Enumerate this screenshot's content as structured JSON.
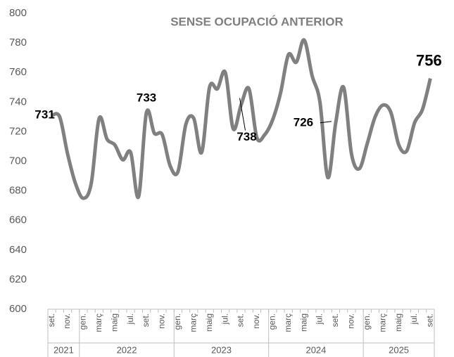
{
  "chart_data": {
    "type": "line",
    "title": "SENSE OCUPACIÓ ANTERIOR",
    "categories": [
      "set.",
      null,
      "nov.",
      null,
      "gen.",
      null,
      "març",
      null,
      "maig",
      null,
      "jul.",
      null,
      "set.",
      null,
      "nov.",
      null,
      "gen.",
      null,
      "març",
      null,
      "maig",
      null,
      "jul.",
      null,
      "set.",
      null,
      "nov.",
      null,
      "gen.",
      null,
      "març",
      null,
      "maig",
      null,
      "jul.",
      null,
      "set.",
      null,
      "nov.",
      null,
      "gen.",
      null,
      "març",
      null,
      "maig",
      null,
      "jul.",
      null,
      "set."
    ],
    "years": [
      "2021",
      "2022",
      "2023",
      "2024",
      "2025"
    ],
    "series": [
      {
        "name": "Sense ocupació anterior",
        "color": "#808080",
        "values": [
          731,
          730,
          705,
          685,
          675,
          685,
          729,
          715,
          711,
          701,
          706,
          676,
          733,
          719,
          718,
          697,
          693,
          725,
          729,
          706,
          750,
          749,
          760,
          722,
          738,
          749,
          716,
          718,
          728,
          746,
          772,
          767,
          782,
          758,
          740,
          689,
          726,
          750,
          705,
          695,
          712,
          730,
          738,
          733,
          711,
          707,
          726,
          735,
          756
        ],
        "value_labels": [
          "731",
          null,
          null,
          null,
          null,
          null,
          null,
          null,
          null,
          null,
          null,
          null,
          "733",
          null,
          null,
          null,
          null,
          null,
          null,
          null,
          null,
          null,
          null,
          null,
          "738",
          null,
          null,
          null,
          null,
          null,
          null,
          null,
          null,
          null,
          null,
          null,
          "726",
          null,
          null,
          null,
          null,
          null,
          null,
          null,
          null,
          null,
          null,
          null,
          "756"
        ]
      }
    ],
    "ylim": [
      600,
      800
    ],
    "yticks": [
      600,
      620,
      640,
      660,
      680,
      700,
      720,
      740,
      760,
      780,
      800
    ],
    "grid": false
  }
}
